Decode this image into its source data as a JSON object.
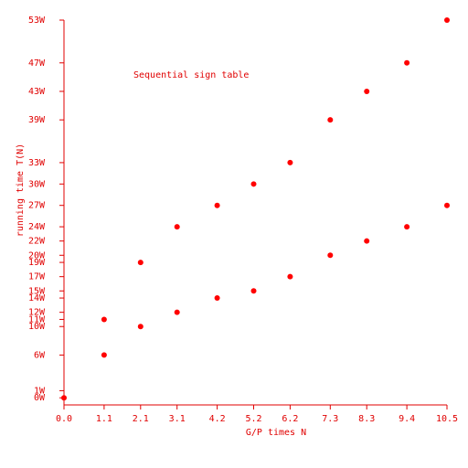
{
  "chart_data": {
    "type": "scatter",
    "title": "Sequential sign table",
    "xlabel": "G/P times N",
    "ylabel": "running time T(N)",
    "series": [
      {
        "color": "red",
        "x": [
          0,
          1.1,
          2.1,
          3.1,
          4.2,
          5.2,
          6.2,
          7.3,
          8.3,
          9.4,
          10.5
        ],
        "values": [
          0,
          11,
          19,
          24,
          27,
          30,
          33,
          39,
          43,
          47,
          53
        ]
      },
      {
        "color": "red",
        "x": [
          1.1,
          2.1,
          3.1,
          4.2,
          5.2,
          6.2,
          7.3,
          8.3,
          9.4,
          10.5
        ],
        "values": [
          6,
          10,
          12,
          14,
          15,
          17,
          20,
          22,
          24,
          27
        ]
      }
    ],
    "xlim": [
      0,
      10.5
    ],
    "xticks": [
      {
        "value": 0,
        "label": "0.0"
      },
      1.1,
      2.1,
      3.1,
      4.2,
      5.2,
      6.2,
      7.3,
      8.3,
      9.4,
      10.5
    ],
    "ylim": [
      -1,
      53
    ],
    "yticks": [
      {
        "value": 0,
        "label": "0W"
      },
      {
        "value": 1,
        "label": "1W"
      },
      {
        "value": 6,
        "label": "6W"
      },
      {
        "value": 10,
        "label": "10W"
      },
      {
        "value": 11,
        "label": "11W"
      },
      {
        "value": 12,
        "label": "12W"
      },
      {
        "value": 14,
        "label": "14W"
      },
      {
        "value": 15,
        "label": "15W"
      },
      {
        "value": 17,
        "label": "17W"
      },
      {
        "value": 19,
        "label": "19W"
      },
      {
        "value": 20,
        "label": "20W"
      },
      {
        "value": 22,
        "label": "22W"
      },
      {
        "value": 24,
        "label": "24W"
      },
      {
        "value": 27,
        "label": "27W"
      },
      {
        "value": 30,
        "label": "30W"
      },
      {
        "value": 33,
        "label": "33W"
      },
      {
        "value": 39,
        "label": "39W"
      },
      {
        "value": 43,
        "label": "43W"
      },
      {
        "value": 47,
        "label": "47W"
      },
      {
        "value": 53,
        "label": "53W"
      }
    ],
    "grid": false
  }
}
